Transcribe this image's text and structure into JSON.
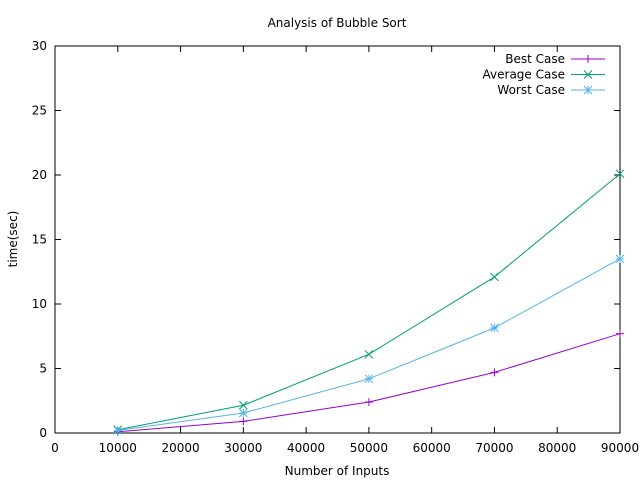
{
  "chart_data": {
    "type": "line",
    "title": "Analysis of Bubble Sort",
    "xlabel": "Number of Inputs",
    "ylabel": "time(sec)",
    "xlim": [
      0,
      90000
    ],
    "ylim": [
      0,
      30
    ],
    "xticks": [
      0,
      10000,
      20000,
      30000,
      40000,
      50000,
      60000,
      70000,
      80000,
      90000
    ],
    "yticks": [
      0,
      5,
      10,
      15,
      20,
      25,
      30
    ],
    "grid": false,
    "legend_position": "top-right",
    "series": [
      {
        "name": "Best Case",
        "marker": "plus",
        "color": "#9400d3",
        "x": [
          10000,
          30000,
          50000,
          70000,
          90000
        ],
        "y": [
          0.1,
          0.9,
          2.4,
          4.7,
          7.7
        ]
      },
      {
        "name": "Average Case",
        "marker": "cross",
        "color": "#009e73",
        "x": [
          10000,
          30000,
          50000,
          70000,
          90000
        ],
        "y": [
          0.25,
          2.15,
          6.1,
          12.1,
          20.1
        ]
      },
      {
        "name": "Worst Case",
        "marker": "star",
        "color": "#56b4e9",
        "x": [
          10000,
          30000,
          50000,
          70000,
          90000
        ],
        "y": [
          0.2,
          1.55,
          4.2,
          8.15,
          13.5
        ]
      }
    ]
  }
}
